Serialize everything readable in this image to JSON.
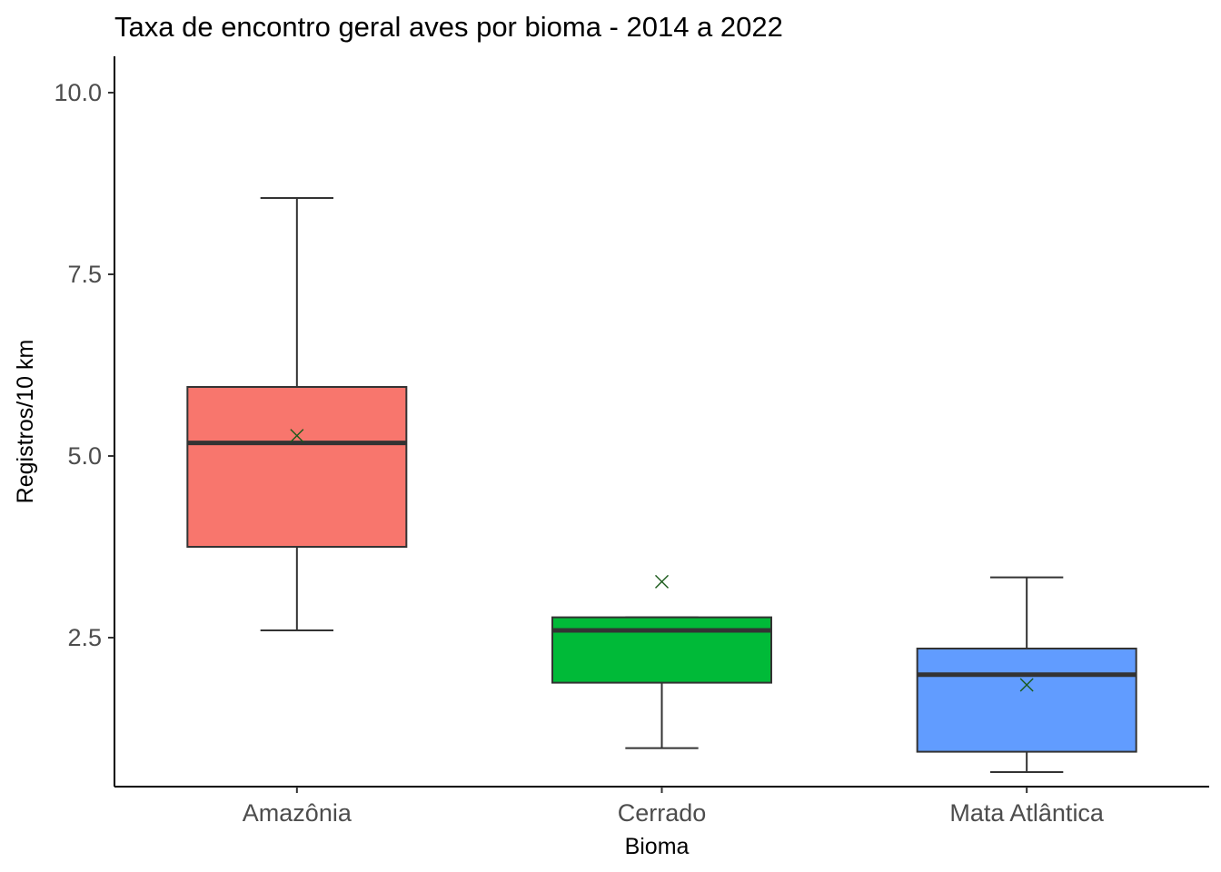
{
  "chart_data": {
    "type": "boxplot",
    "title": "Taxa de encontro geral aves por bioma - 2014 a 2022",
    "xlabel": "Bioma",
    "ylabel": "Registros/10 km",
    "ylim": [
      0.45,
      10.5
    ],
    "yticks": [
      2.5,
      5.0,
      7.5,
      10.0
    ],
    "ytick_labels": [
      "2.5",
      "5.0",
      "7.5",
      "10.0"
    ],
    "grid": false,
    "legend": "none",
    "categories": [
      "Amazônia",
      "Cerrado",
      "Mata Atlântica"
    ],
    "boxes": [
      {
        "category": "Amazônia",
        "whisker_low": 2.6,
        "q1": 3.75,
        "median": 5.18,
        "q3": 5.95,
        "whisker_high": 8.55,
        "mean": 5.28,
        "color": "#F8766D"
      },
      {
        "category": "Cerrado",
        "whisker_low": 0.98,
        "q1": 1.88,
        "median": 2.6,
        "q3": 2.78,
        "whisker_high": 2.78,
        "mean": 3.27,
        "color": "#00BA38"
      },
      {
        "category": "Mata Atlântica",
        "whisker_low": 0.65,
        "q1": 0.93,
        "median": 1.99,
        "q3": 2.35,
        "whisker_high": 3.33,
        "mean": 1.85,
        "color": "#619CFF"
      }
    ]
  }
}
